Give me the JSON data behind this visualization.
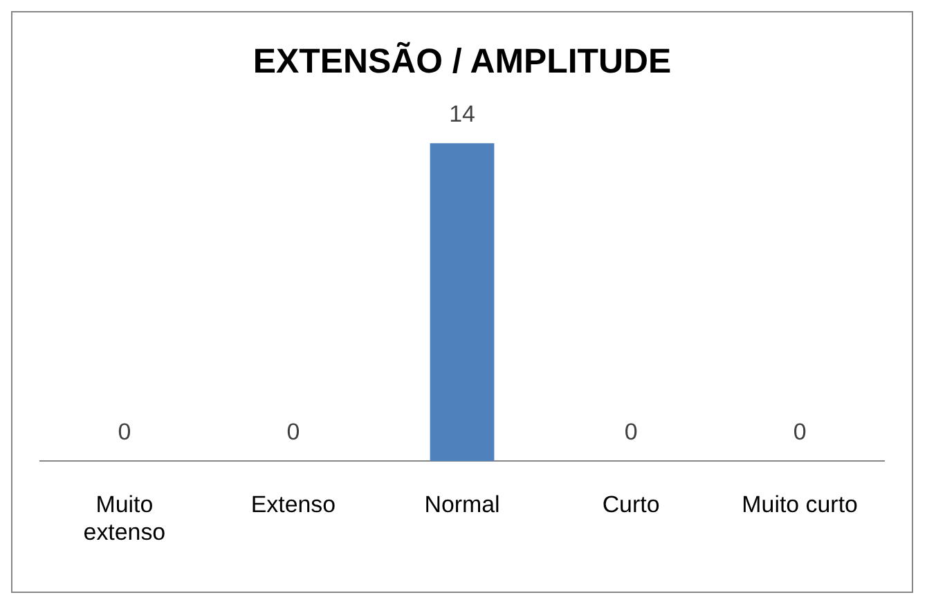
{
  "chart_data": {
    "type": "bar",
    "title": "EXTENSÃO / AMPLITUDE",
    "categories": [
      "Muito extenso",
      "Extenso",
      "Normal",
      "Curto",
      "Muito curto"
    ],
    "values": [
      0,
      0,
      14,
      0,
      0
    ],
    "color": "#4f81bd",
    "data_labels": true,
    "grid": false,
    "legend": false,
    "tick_labels": "x"
  }
}
